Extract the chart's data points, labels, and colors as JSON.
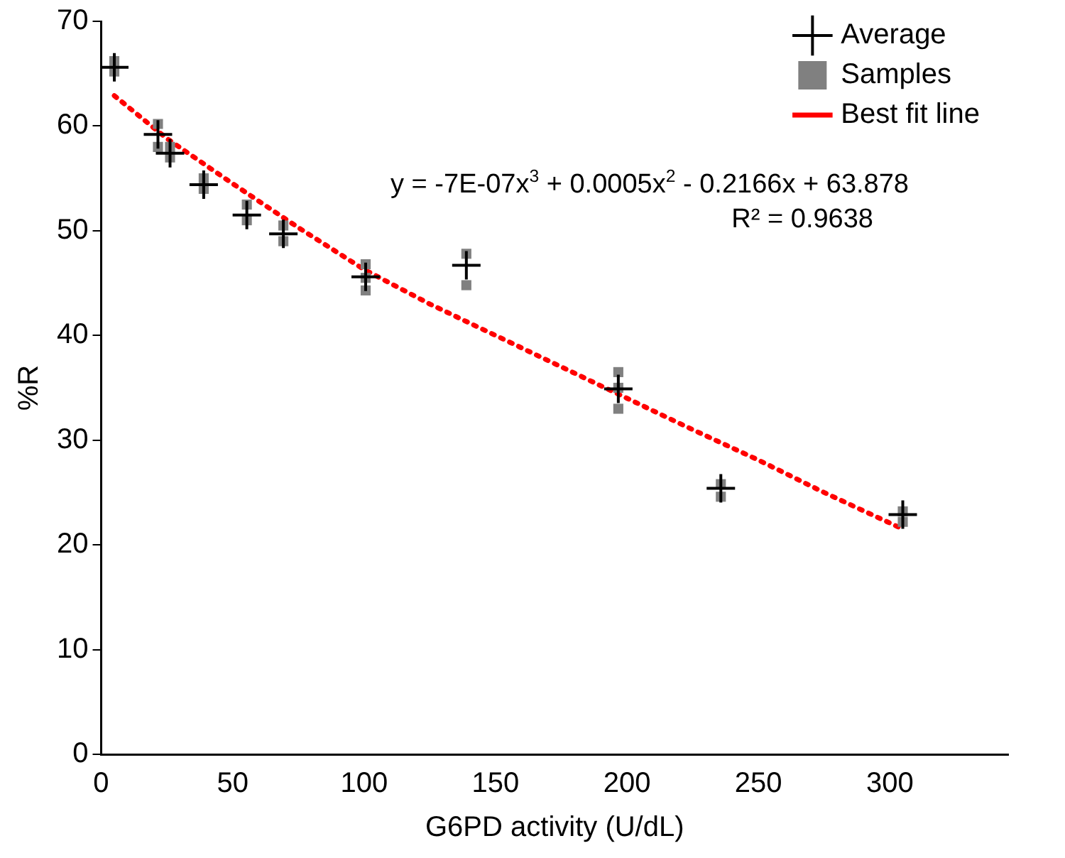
{
  "chart_data": {
    "type": "scatter",
    "xlabel": "G6PD activity (U/dL)",
    "ylabel": "%R",
    "xlim": [
      0,
      345
    ],
    "xticks": [
      0,
      50,
      100,
      150,
      200,
      250,
      300
    ],
    "ylim": [
      0,
      70
    ],
    "yticks": [
      0,
      10,
      20,
      30,
      40,
      50,
      60,
      70
    ],
    "grid": false,
    "legend": "top right",
    "annotations": [
      "y = -7E-07x$^{3}$ + 0.0005x$^{2}$ - 0.2166x + 63.878",
      "R² = 0.9638"
    ],
    "series": [
      {
        "name": "Samples",
        "type": "scatter",
        "marker": "square",
        "color": "#808080",
        "x": [
          5,
          5,
          21.6,
          21.6,
          26.2,
          26.2,
          39,
          39,
          55.4,
          55.4,
          69.3,
          69.3,
          100.6,
          100.6,
          100.6,
          138.9,
          138.9,
          196.7,
          196.7,
          196.7,
          235.7,
          235.7,
          304.9,
          304.9
        ],
        "values": [
          66.2,
          65.2,
          60.2,
          58.0,
          58.0,
          57.0,
          55.0,
          54.0,
          52.5,
          51.0,
          50.5,
          49.0,
          46.8,
          45.5,
          44.3,
          47.8,
          44.8,
          36.5,
          35.0,
          33.0,
          25.8,
          24.6,
          23.2,
          22.2
        ]
      },
      {
        "name": "Average",
        "type": "scatter",
        "marker": "cross",
        "color": "#000000",
        "x": [
          5,
          21.6,
          26.2,
          39,
          55.4,
          69.3,
          100.6,
          138.9,
          196.7,
          235.7,
          304.9
        ],
        "values": [
          65.6,
          59.2,
          57.4,
          54.4,
          51.5,
          49.7,
          45.6,
          46.7,
          34.9,
          25.4,
          22.9
        ]
      },
      {
        "name": "Best fit line",
        "type": "line",
        "marker": "none",
        "line_style": "dotted",
        "color": "#ff0000",
        "x": [
          5,
          25,
          50,
          75,
          100,
          125,
          150,
          175,
          200,
          225,
          250,
          275,
          305
        ],
        "values": [
          62.9,
          58.8,
          54.5,
          50.3,
          46.3,
          43.0,
          40.0,
          37.0,
          34.0,
          31.0,
          28.1,
          25.0,
          21.5
        ]
      }
    ]
  }
}
